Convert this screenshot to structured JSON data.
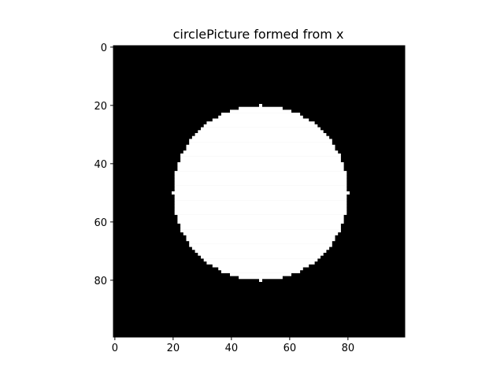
{
  "chart_data": {
    "type": "heatmap",
    "title": "circlePicture formed from x",
    "xlabel": "",
    "ylabel": "",
    "image_size": [
      100,
      100
    ],
    "colormap": "gray",
    "background_value": 0,
    "foreground_value": 1,
    "circle": {
      "center_x": 50,
      "center_y": 50,
      "radius": 30
    },
    "x_range": [
      -0.5,
      99.5
    ],
    "y_range": [
      99.5,
      -0.5
    ],
    "x_ticks": [
      0,
      20,
      40,
      60,
      80
    ],
    "y_ticks": [
      0,
      20,
      40,
      60,
      80
    ],
    "grid": false,
    "legend": "none"
  }
}
